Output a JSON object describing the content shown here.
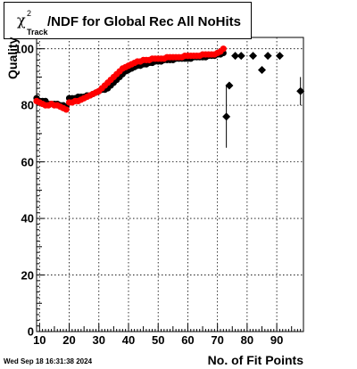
{
  "chart_data": {
    "type": "scatter",
    "title": {
      "symbol": "χ",
      "superscript": "2",
      "subscript": "Track",
      "rest": "/NDF for Global Rec All NoHits"
    },
    "xlabel": "No. of Fit Points",
    "ylabel": "Quality",
    "xlim": [
      9,
      99
    ],
    "ylim": [
      0,
      104
    ],
    "x_ticks": [
      10,
      20,
      30,
      40,
      50,
      60,
      70,
      80,
      90
    ],
    "y_ticks": [
      0,
      20,
      40,
      60,
      80,
      100
    ],
    "grid": true,
    "timestamp": "Wed Sep 18 16:31:38 2024",
    "series": [
      {
        "color": "#000000",
        "marker": "circle",
        "x": [
          9,
          10,
          11,
          12,
          13,
          14,
          15,
          16,
          17,
          18,
          19,
          20,
          21,
          22,
          23,
          24,
          25,
          26,
          27,
          28,
          29,
          30,
          31,
          32,
          33,
          34,
          35,
          36,
          37,
          38,
          39,
          40,
          41,
          42,
          43,
          44,
          45,
          46,
          47,
          48,
          49,
          50,
          51,
          52,
          53,
          54,
          55,
          56,
          57,
          58,
          59,
          60,
          61,
          62,
          63,
          64,
          65,
          66,
          67,
          68,
          69,
          70,
          71,
          72
        ],
        "y": [
          82.5,
          81.5,
          81.5,
          81.5,
          80.5,
          80.5,
          80.5,
          80.5,
          80.0,
          80.0,
          79.5,
          82.5,
          82.5,
          82.5,
          83.0,
          83.0,
          83.0,
          83.5,
          83.5,
          84.0,
          84.5,
          85.0,
          85.5,
          85.5,
          86.0,
          87.0,
          88.0,
          89.0,
          90.0,
          91.0,
          92.0,
          92.5,
          93.0,
          93.5,
          94.0,
          94.0,
          94.5,
          94.5,
          95.0,
          95.0,
          95.5,
          95.5,
          95.5,
          96.0,
          96.0,
          96.0,
          96.0,
          96.5,
          96.5,
          96.5,
          96.5,
          96.5,
          96.5,
          97.0,
          97.0,
          97.0,
          97.0,
          97.0,
          97.5,
          97.5,
          97.5,
          98.0,
          98.0,
          98.5
        ],
        "err": []
      },
      {
        "color": "#000000",
        "marker": "diamond",
        "x": [
          73,
          74,
          76,
          78,
          82,
          85,
          87,
          91
        ],
        "y": [
          76,
          87,
          97.5,
          97.5,
          97.5,
          92.5,
          97.5,
          97.5
        ],
        "err": [
          11,
          0,
          0,
          0,
          0,
          0,
          0,
          0
        ]
      },
      {
        "color": "#000000",
        "marker": "diamond",
        "x": [
          98
        ],
        "y": [
          85
        ],
        "err": [
          5
        ]
      },
      {
        "color": "#ff0000",
        "marker": "circle",
        "x": [
          9,
          10,
          11,
          12,
          13,
          14,
          15,
          16,
          17,
          18,
          19,
          20,
          21,
          22,
          23,
          24,
          25,
          26,
          27,
          28,
          29,
          30,
          31,
          32,
          33,
          34,
          35,
          36,
          37,
          38,
          39,
          40,
          41,
          42,
          43,
          44,
          45,
          46,
          47,
          48,
          49,
          50,
          51,
          52,
          53,
          54,
          55,
          56,
          57,
          58,
          59,
          60,
          61,
          62,
          63,
          64,
          65,
          66,
          67,
          68,
          69,
          70,
          71,
          72
        ],
        "y": [
          81.5,
          81.0,
          80.5,
          80.0,
          80.0,
          80.5,
          80.0,
          80.0,
          79.5,
          79.0,
          78.5,
          81.0,
          81.0,
          81.5,
          81.5,
          82.0,
          82.5,
          83.0,
          83.5,
          84.0,
          84.5,
          85.0,
          86.0,
          87.0,
          88.0,
          89.0,
          90.0,
          91.0,
          92.0,
          93.0,
          93.5,
          94.0,
          94.5,
          95.0,
          95.5,
          95.5,
          96.0,
          96.0,
          96.0,
          96.5,
          96.5,
          96.5,
          96.5,
          96.5,
          97.0,
          97.0,
          97.0,
          97.0,
          97.0,
          97.0,
          97.5,
          97.5,
          97.5,
          97.5,
          97.5,
          97.5,
          98.0,
          98.0,
          98.0,
          98.0,
          98.0,
          98.5,
          99.0,
          100.0
        ],
        "err": []
      }
    ]
  }
}
